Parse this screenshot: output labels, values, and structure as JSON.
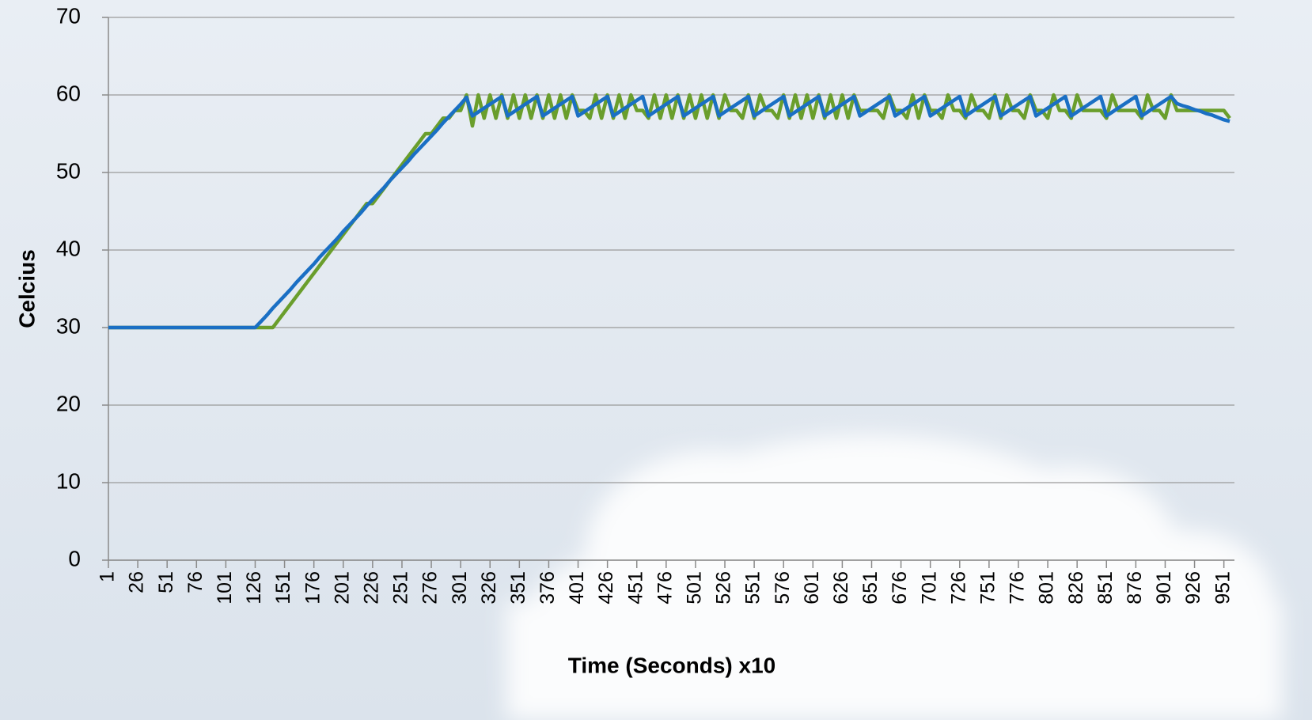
{
  "chart_data": {
    "type": "line",
    "y_label": "Celcius",
    "x_label": "Time (Seconds) x10",
    "xlim": [
      1,
      960
    ],
    "xticks": [
      1,
      26,
      51,
      76,
      101,
      126,
      151,
      176,
      201,
      226,
      251,
      276,
      301,
      326,
      351,
      376,
      401,
      426,
      451,
      476,
      501,
      526,
      551,
      576,
      601,
      626,
      651,
      676,
      701,
      726,
      751,
      776,
      801,
      826,
      851,
      876,
      901,
      926,
      951
    ],
    "ylim": [
      0,
      70
    ],
    "yticks": [
      0,
      10,
      20,
      30,
      40,
      50,
      60,
      70
    ],
    "grid": true,
    "x": [
      1,
      6,
      11,
      16,
      21,
      26,
      31,
      36,
      41,
      46,
      51,
      56,
      61,
      66,
      71,
      76,
      81,
      86,
      91,
      96,
      101,
      106,
      111,
      116,
      121,
      126,
      131,
      136,
      141,
      146,
      151,
      156,
      161,
      166,
      171,
      176,
      181,
      186,
      191,
      196,
      201,
      206,
      211,
      216,
      221,
      226,
      231,
      236,
      241,
      246,
      251,
      256,
      261,
      266,
      271,
      276,
      281,
      286,
      291,
      296,
      301,
      306,
      311,
      316,
      321,
      326,
      331,
      336,
      341,
      346,
      351,
      356,
      361,
      366,
      371,
      376,
      381,
      386,
      391,
      396,
      401,
      406,
      411,
      416,
      421,
      426,
      431,
      436,
      441,
      446,
      451,
      456,
      461,
      466,
      471,
      476,
      481,
      486,
      491,
      496,
      501,
      506,
      511,
      516,
      521,
      526,
      531,
      536,
      541,
      546,
      551,
      556,
      561,
      566,
      571,
      576,
      581,
      586,
      591,
      596,
      601,
      606,
      611,
      616,
      621,
      626,
      631,
      636,
      641,
      646,
      651,
      656,
      661,
      666,
      671,
      676,
      681,
      686,
      691,
      696,
      701,
      706,
      711,
      716,
      721,
      726,
      731,
      736,
      741,
      746,
      751,
      756,
      761,
      766,
      771,
      776,
      781,
      786,
      791,
      796,
      801,
      806,
      811,
      816,
      821,
      826,
      831,
      836,
      841,
      846,
      851,
      856,
      861,
      866,
      871,
      876,
      881,
      886,
      891,
      896,
      901,
      906,
      911,
      916,
      921,
      926,
      931,
      936,
      941,
      946,
      951,
      956
    ],
    "series": [
      {
        "color": "#6a9e2c",
        "values": [
          30,
          30,
          30,
          30,
          30,
          30,
          30,
          30,
          30,
          30,
          30,
          30,
          30,
          30,
          30,
          30,
          30,
          30,
          30,
          30,
          30,
          30,
          30,
          30,
          30,
          30,
          30,
          30,
          30,
          31,
          32,
          33,
          34,
          35,
          36,
          37,
          38,
          39,
          40,
          41,
          42,
          43,
          44,
          45,
          46,
          46,
          47,
          48,
          49,
          50,
          51,
          52,
          53,
          54,
          55,
          55,
          56,
          57,
          57,
          58,
          58,
          60,
          56,
          60,
          57,
          60,
          57,
          60,
          57,
          60,
          57,
          60,
          57,
          60,
          57,
          60,
          57,
          60,
          57,
          60,
          58,
          58,
          57,
          60,
          57,
          60,
          57,
          60,
          57,
          60,
          58,
          58,
          57,
          60,
          57,
          60,
          57,
          60,
          57,
          60,
          57,
          60,
          57,
          60,
          57,
          60,
          58,
          58,
          57,
          60,
          57,
          60,
          58,
          58,
          57,
          60,
          57,
          60,
          57,
          60,
          57,
          60,
          57,
          60,
          57,
          60,
          57,
          60,
          58,
          58,
          58,
          58,
          57,
          60,
          58,
          58,
          57,
          60,
          57,
          60,
          58,
          58,
          57,
          60,
          58,
          58,
          57,
          60,
          58,
          58,
          57,
          60,
          57,
          60,
          58,
          58,
          57,
          60,
          58,
          58,
          57,
          60,
          58,
          58,
          57,
          60,
          58,
          58,
          58,
          58,
          57,
          60,
          58,
          58,
          58,
          58,
          57,
          60,
          58,
          58,
          57,
          60,
          58,
          58,
          58,
          58,
          58,
          58,
          58,
          58,
          58,
          57
        ]
      },
      {
        "color": "#1a6fc4",
        "values": [
          30,
          30,
          30,
          30,
          30,
          30,
          30,
          30,
          30,
          30,
          30,
          30,
          30,
          30,
          30,
          30,
          30,
          30,
          30,
          30,
          30,
          30,
          30,
          30,
          30,
          30,
          30.8,
          31.6,
          32.5,
          33.3,
          34.1,
          34.9,
          35.8,
          36.6,
          37.4,
          38.2,
          39.1,
          39.9,
          40.7,
          41.5,
          42.4,
          43.2,
          44.0,
          44.8,
          45.7,
          46.5,
          47.3,
          48.1,
          49.0,
          49.8,
          50.6,
          51.4,
          52.3,
          53.1,
          53.9,
          54.7,
          55.5,
          56.4,
          57.2,
          58.0,
          58.8,
          59.7,
          57.3,
          57.8,
          58.3,
          58.8,
          59.3,
          59.8,
          57.3,
          57.8,
          58.3,
          58.8,
          59.3,
          59.8,
          57.3,
          57.8,
          58.3,
          58.8,
          59.3,
          59.8,
          57.3,
          57.8,
          58.3,
          58.8,
          59.3,
          59.8,
          57.3,
          57.8,
          58.3,
          58.8,
          59.3,
          59.8,
          57.3,
          57.8,
          58.3,
          58.8,
          59.3,
          59.8,
          57.3,
          57.8,
          58.3,
          58.8,
          59.3,
          59.8,
          57.3,
          57.8,
          58.3,
          58.8,
          59.3,
          59.8,
          57.3,
          57.8,
          58.3,
          58.8,
          59.3,
          59.8,
          57.3,
          57.8,
          58.3,
          58.8,
          59.3,
          59.8,
          57.3,
          57.8,
          58.3,
          58.8,
          59.3,
          59.8,
          57.3,
          57.8,
          58.3,
          58.8,
          59.3,
          59.8,
          57.3,
          57.8,
          58.3,
          58.8,
          59.3,
          59.8,
          57.3,
          57.8,
          58.3,
          58.8,
          59.3,
          59.8,
          57.3,
          57.8,
          58.3,
          58.8,
          59.3,
          59.8,
          57.3,
          57.8,
          58.3,
          58.8,
          59.3,
          59.8,
          57.3,
          57.8,
          58.3,
          58.8,
          59.3,
          59.8,
          57.3,
          57.8,
          58.3,
          58.8,
          59.3,
          59.8,
          57.3,
          57.8,
          58.3,
          58.8,
          59.3,
          59.8,
          57.3,
          57.8,
          58.3,
          58.8,
          59.3,
          59.8,
          58.9,
          58.6,
          58.4,
          58.1,
          57.9,
          57.6,
          57.4,
          57.1,
          56.8,
          56.6
        ]
      }
    ]
  }
}
